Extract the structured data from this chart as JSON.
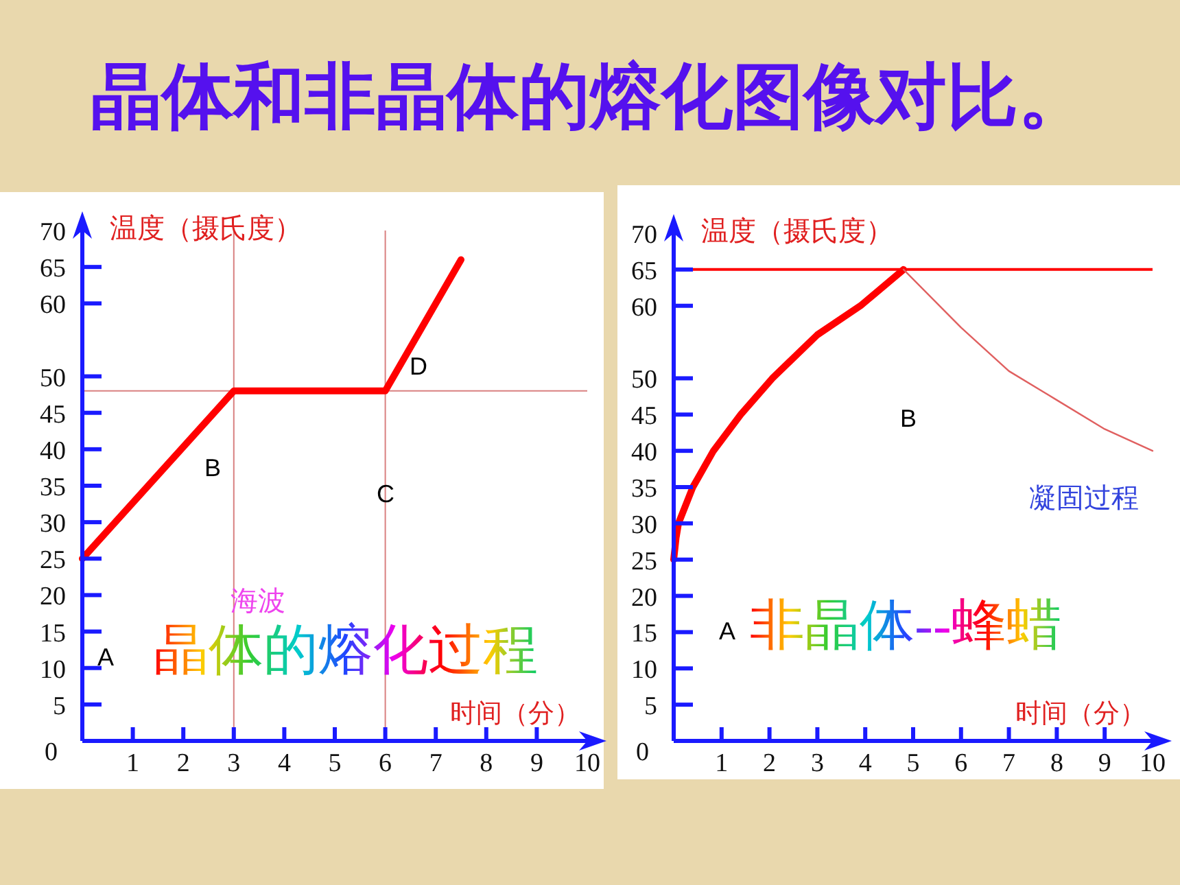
{
  "chart_data": [
    {
      "type": "line",
      "title": "晶体和非晶体的熔化图像对比。",
      "ylabel": "温度（摄氏度）",
      "xlabel": "时间（分）",
      "xlim": [
        0,
        10
      ],
      "ylim": [
        0,
        70
      ],
      "xticks": [
        1,
        2,
        3,
        4,
        5,
        6,
        7,
        8,
        9,
        10
      ],
      "yticks": [
        0,
        5,
        10,
        15,
        20,
        25,
        30,
        35,
        40,
        45,
        50,
        60,
        65,
        70
      ],
      "series": [
        {
          "color": "#ff0000",
          "x": [
            0,
            3,
            6,
            7.5
          ],
          "values": [
            25,
            48,
            48,
            66
          ]
        }
      ],
      "ref_lines": [
        {
          "axis": "y",
          "value": 48,
          "color": "#d98080"
        },
        {
          "axis": "x",
          "value": 3,
          "color": "#d98080"
        },
        {
          "axis": "x",
          "value": 6,
          "color": "#d98080"
        }
      ],
      "annotations": [
        "A",
        "B",
        "C",
        "D",
        "海波",
        "晶体的熔化过程"
      ]
    },
    {
      "type": "line",
      "ylabel": "温度（摄氏度）",
      "xlabel": "时间（分）",
      "xlim": [
        0,
        10
      ],
      "ylim": [
        0,
        70
      ],
      "xticks": [
        1,
        2,
        3,
        4,
        5,
        6,
        7,
        8,
        9,
        10
      ],
      "yticks": [
        0,
        5,
        10,
        15,
        20,
        25,
        30,
        35,
        40,
        45,
        50,
        60,
        65,
        70
      ],
      "series": [
        {
          "color": "#ff0000",
          "x": [
            0,
            0.05,
            0.1,
            0.4,
            0.83,
            1.4,
            2.06,
            3,
            3.9,
            4.8
          ],
          "values": [
            25,
            28,
            30,
            35,
            40,
            45,
            50,
            56,
            60,
            65
          ]
        },
        {
          "color": "#e06060",
          "x": [
            4.8,
            6,
            7,
            8,
            9,
            10
          ],
          "values": [
            65,
            57,
            51,
            47,
            43,
            40
          ]
        }
      ],
      "ref_lines": [
        {
          "axis": "y",
          "value": 65,
          "color": "#ff0000"
        }
      ],
      "annotations": [
        "A",
        "B",
        "凝固过程",
        "非晶体--蜂蜡"
      ]
    }
  ]
}
